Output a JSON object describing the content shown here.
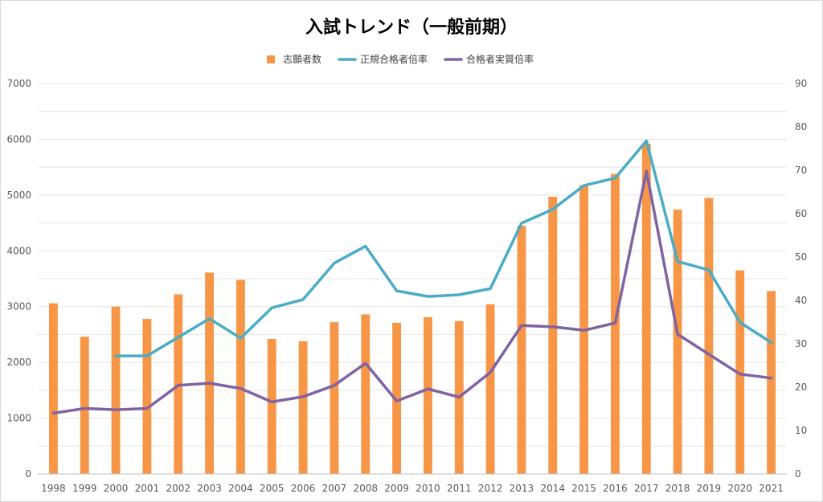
{
  "chart_data": {
    "type": "bar",
    "title": "入試トレンド（一般前期）",
    "categories": [
      "1998",
      "1999",
      "2000",
      "2001",
      "2002",
      "2003",
      "2004",
      "2005",
      "2006",
      "2007",
      "2008",
      "2009",
      "2010",
      "2011",
      "2012",
      "2013",
      "2014",
      "2015",
      "2016",
      "2017",
      "2018",
      "2019",
      "2020",
      "2021"
    ],
    "ylim": [
      0,
      7000
    ],
    "yticks": [
      0,
      1000,
      2000,
      3000,
      4000,
      5000,
      6000,
      7000
    ],
    "y2lim": [
      0,
      90
    ],
    "y2ticks": [
      0,
      10,
      20,
      30,
      40,
      50,
      60,
      70,
      80,
      90
    ],
    "grid": true,
    "legend_position": "top",
    "series": [
      {
        "name": "志願者数",
        "type": "bar",
        "axis": "left",
        "color": "#F79646",
        "values": [
          3060,
          2460,
          3000,
          2780,
          3220,
          3610,
          3480,
          2420,
          2380,
          2720,
          2860,
          2710,
          2810,
          2740,
          3040,
          4450,
          4970,
          5180,
          5380,
          5920,
          4740,
          4950,
          3650,
          3280
        ]
      },
      {
        "name": "正規合格者倍率",
        "type": "line",
        "axis": "right",
        "color": "#4BACC6",
        "values": [
          null,
          null,
          27.2,
          27.2,
          31.5,
          35.8,
          31.3,
          38.3,
          40.2,
          48.6,
          52.5,
          42.2,
          40.9,
          41.3,
          42.7,
          57.8,
          61.0,
          66.5,
          68.2,
          76.8,
          49.0,
          47.0,
          34.9,
          30.3
        ]
      },
      {
        "name": "合格者実質倍率",
        "type": "line",
        "axis": "right",
        "color": "#8064A2",
        "values": [
          14.0,
          15.1,
          14.8,
          15.1,
          20.4,
          20.9,
          19.7,
          16.6,
          17.8,
          20.4,
          25.5,
          16.8,
          19.6,
          17.7,
          23.4,
          34.2,
          33.9,
          33.1,
          34.8,
          69.8,
          32.2,
          27.6,
          23.0,
          22.1
        ]
      }
    ]
  }
}
